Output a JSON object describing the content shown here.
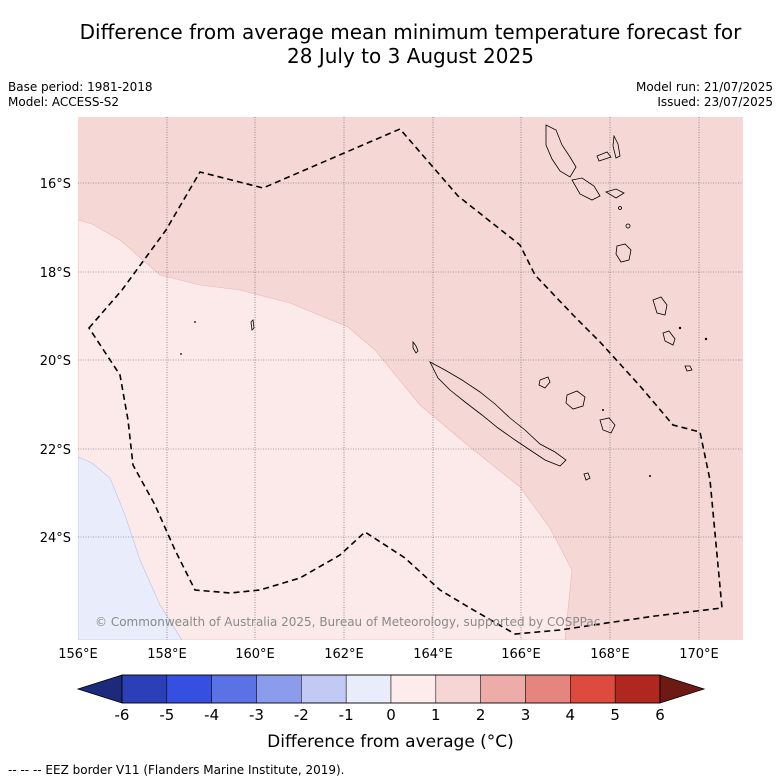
{
  "title_line1": "Difference from average mean minimum temperature forecast for",
  "title_line2": "28 July to 3 August 2025",
  "base_period": "Base period: 1981-2018",
  "model": "Model: ACCESS-S2",
  "model_run": "Model run: 21/07/2025",
  "issued": "Issued: 23/07/2025",
  "map": {
    "lat_labels": [
      "16°S",
      "18°S",
      "20°S",
      "22°S",
      "24°S"
    ],
    "lon_labels": [
      "156°E",
      "158°E",
      "160°E",
      "162°E",
      "164°E",
      "166°E",
      "168°E",
      "170°E"
    ],
    "copyright": "© Commonwealth of Australia 2025, Bureau of Meteorology, supported by COSPPac"
  },
  "colorbar": {
    "ticks": [
      "-6",
      "-5",
      "-4",
      "-3",
      "-2",
      "-1",
      "0",
      "1",
      "2",
      "3",
      "4",
      "5",
      "6"
    ],
    "colors": [
      "#1b2a7a",
      "#2b3fb8",
      "#3550e0",
      "#5a72e6",
      "#8b9cec",
      "#c2c9f5",
      "#e8ecfb",
      "#fdeceb",
      "#f6d6d5",
      "#eeaca8",
      "#e5857d",
      "#dc4b3e",
      "#b0271f",
      "#6e1a14"
    ],
    "label": "Difference from average (°C)"
  },
  "legend_note": "-- -- -- EEZ border V11 (Flanders Marine Institute, 2019).",
  "palette": {
    "warm_light": "#fbeae9",
    "warm": "#f5d8d6",
    "cool_light": "#e8ecfb"
  }
}
